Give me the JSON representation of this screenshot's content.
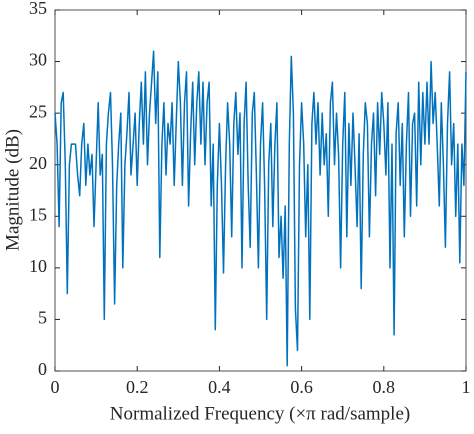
{
  "chart_data": {
    "type": "line",
    "xlabel": "Normalized Frequency  (×π rad/sample)",
    "ylabel": "Magnitude (dB)",
    "xlim": [
      0,
      1
    ],
    "ylim": [
      0,
      35
    ],
    "xticks": [
      0,
      0.2,
      0.4,
      0.6,
      0.8,
      1
    ],
    "yticks": [
      0,
      5,
      10,
      15,
      20,
      25,
      30,
      35
    ],
    "series": [
      {
        "color": "#0072bd",
        "x": [
          0,
          0.005,
          0.01,
          0.015,
          0.02,
          0.025,
          0.03,
          0.035,
          0.04,
          0.045,
          0.05,
          0.055,
          0.06,
          0.065,
          0.07,
          0.075,
          0.08,
          0.085,
          0.09,
          0.095,
          0.1,
          0.105,
          0.11,
          0.115,
          0.12,
          0.125,
          0.13,
          0.135,
          0.14,
          0.145,
          0.15,
          0.155,
          0.16,
          0.165,
          0.17,
          0.175,
          0.18,
          0.185,
          0.19,
          0.195,
          0.2,
          0.205,
          0.21,
          0.215,
          0.22,
          0.225,
          0.23,
          0.235,
          0.24,
          0.245,
          0.25,
          0.255,
          0.26,
          0.265,
          0.27,
          0.275,
          0.28,
          0.285,
          0.29,
          0.295,
          0.3,
          0.305,
          0.31,
          0.315,
          0.32,
          0.325,
          0.33,
          0.335,
          0.34,
          0.345,
          0.35,
          0.355,
          0.36,
          0.365,
          0.37,
          0.375,
          0.38,
          0.385,
          0.39,
          0.395,
          0.4,
          0.405,
          0.41,
          0.415,
          0.42,
          0.425,
          0.43,
          0.435,
          0.44,
          0.445,
          0.45,
          0.455,
          0.46,
          0.465,
          0.47,
          0.475,
          0.48,
          0.485,
          0.49,
          0.495,
          0.5,
          0.505,
          0.51,
          0.515,
          0.52,
          0.525,
          0.53,
          0.535,
          0.54,
          0.545,
          0.55,
          0.555,
          0.56,
          0.565,
          0.57,
          0.575,
          0.58,
          0.585,
          0.59,
          0.595,
          0.6,
          0.605,
          0.61,
          0.615,
          0.62,
          0.625,
          0.63,
          0.635,
          0.64,
          0.645,
          0.65,
          0.655,
          0.66,
          0.665,
          0.67,
          0.675,
          0.68,
          0.685,
          0.69,
          0.695,
          0.7,
          0.705,
          0.71,
          0.715,
          0.72,
          0.725,
          0.73,
          0.735,
          0.74,
          0.745,
          0.75,
          0.755,
          0.76,
          0.765,
          0.77,
          0.775,
          0.78,
          0.785,
          0.79,
          0.795,
          0.8,
          0.805,
          0.81,
          0.815,
          0.82,
          0.825,
          0.83,
          0.835,
          0.84,
          0.845,
          0.85,
          0.855,
          0.86,
          0.865,
          0.87,
          0.875,
          0.88,
          0.885,
          0.89,
          0.895,
          0.9,
          0.905,
          0.91,
          0.915,
          0.92,
          0.925,
          0.93,
          0.935,
          0.94,
          0.945,
          0.95,
          0.955,
          0.96,
          0.965,
          0.97,
          0.975,
          0.98,
          0.985,
          0.99,
          0.995,
          1
        ],
        "values": [
          25,
          22,
          14,
          26,
          27,
          20,
          7.5,
          20,
          22,
          22,
          22,
          19,
          17,
          22,
          24,
          18,
          22,
          19,
          21,
          14,
          20,
          26,
          19,
          21,
          5,
          22,
          25,
          27,
          20,
          6.5,
          18,
          22,
          25,
          10,
          20,
          23,
          27,
          19,
          22,
          25,
          18,
          24,
          28,
          22,
          29,
          20,
          25,
          28,
          31,
          24,
          29,
          11,
          22,
          26,
          19,
          24,
          22,
          26,
          18,
          24,
          30,
          26,
          18,
          26,
          29,
          16,
          23,
          28,
          20,
          26,
          29,
          22,
          28,
          20,
          26,
          28,
          16,
          22,
          4,
          18,
          24,
          18,
          9.5,
          20,
          26,
          22,
          13,
          24,
          27,
          21,
          25,
          10,
          24,
          28,
          18,
          12,
          25,
          27,
          19,
          10,
          22,
          26,
          18,
          5,
          20,
          24,
          14,
          22,
          26,
          11,
          15,
          9,
          16,
          0.5,
          22,
          30.5,
          25,
          6,
          2,
          20,
          26,
          22,
          13,
          20,
          5,
          24,
          27,
          22,
          26,
          19,
          25,
          20,
          23,
          15,
          26,
          28,
          20,
          25,
          21,
          10,
          22,
          27,
          13,
          24,
          18,
          25,
          20,
          14,
          23,
          8,
          21,
          26,
          24,
          13,
          22,
          25,
          17,
          26,
          21,
          27,
          24,
          19,
          26,
          10,
          22,
          3.5,
          23,
          26,
          18,
          24,
          13,
          22,
          27,
          15,
          24,
          25,
          16,
          28,
          20,
          27,
          22,
          28,
          22,
          30,
          24,
          27,
          22,
          16,
          26,
          20,
          12,
          24,
          29,
          20,
          24,
          15,
          22,
          10.5,
          22,
          18,
          29
        ]
      }
    ]
  }
}
